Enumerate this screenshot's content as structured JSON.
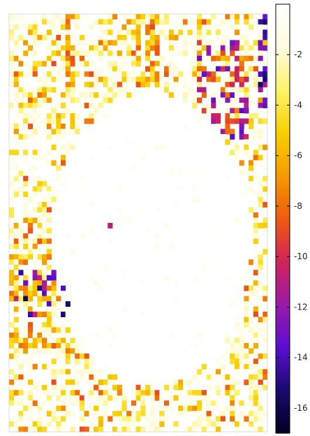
{
  "chart_data": {
    "type": "heatmap",
    "title": "",
    "xlabel": "",
    "ylabel": "",
    "grid": false,
    "rows": 80,
    "cols": 55,
    "colorbar": {
      "position": "right",
      "range": [
        -17,
        0
      ],
      "ticks": [
        -2,
        -4,
        -6,
        -8,
        -10,
        -12,
        -14,
        -16
      ],
      "tick_labels": [
        "-2",
        "-4",
        "-6",
        "-8",
        "-10",
        "-12",
        "-14",
        "-16"
      ],
      "colormap": [
        "#000022",
        "#1a0a6e",
        "#5a0ed0",
        "#9a1aa8",
        "#d02458",
        "#ef5b10",
        "#f59a00",
        "#f9d000",
        "#fdf36a",
        "#fffbe0",
        "#ffffff"
      ]
    },
    "pattern": "Sparse log-scale matrix: values near 0 (white/pale yellow) across a large central elliptical region; scattered negative values (-1 to -9, yellow to orange/red) concentrated along the left edge, the lower-left band, the top, bottom and right margins; a few deep values (-11 to -16, purple/dark) in the upper-right columns, the far-right column and a small cluster in the left-middle."
  }
}
